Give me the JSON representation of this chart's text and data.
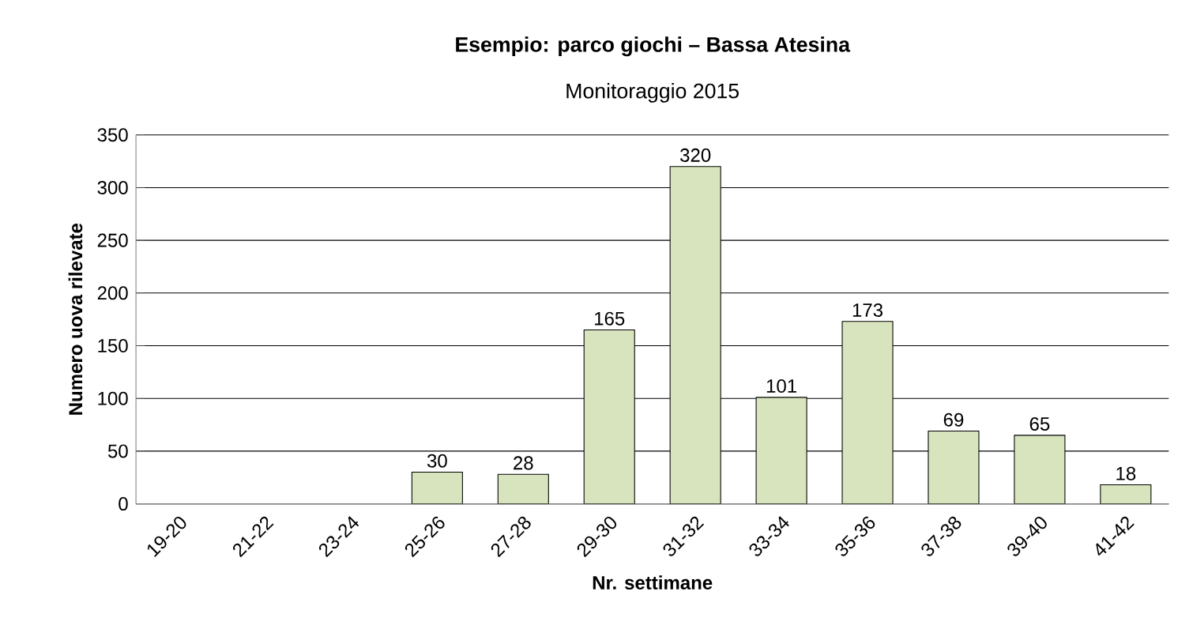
{
  "chart_data": {
    "type": "bar",
    "title": "Esempio: parco giochi – Bassa Atesina",
    "subtitle": "Monitoraggio 2015",
    "xlabel": "Nr. settimane",
    "ylabel": "Numero uova rilevate",
    "categories": [
      "19-20",
      "21-22",
      "23-24",
      "25-26",
      "27-28",
      "29-30",
      "31-32",
      "33-34",
      "35-36",
      "37-38",
      "39-40",
      "41-42"
    ],
    "values": [
      null,
      null,
      null,
      30,
      28,
      165,
      320,
      101,
      173,
      69,
      65,
      18
    ],
    "color": "#d7e4bd",
    "ylim": [
      0,
      350
    ],
    "yticks": [
      0,
      50,
      100,
      150,
      200,
      250,
      300,
      350
    ],
    "grid": "y",
    "data_labels": true
  }
}
